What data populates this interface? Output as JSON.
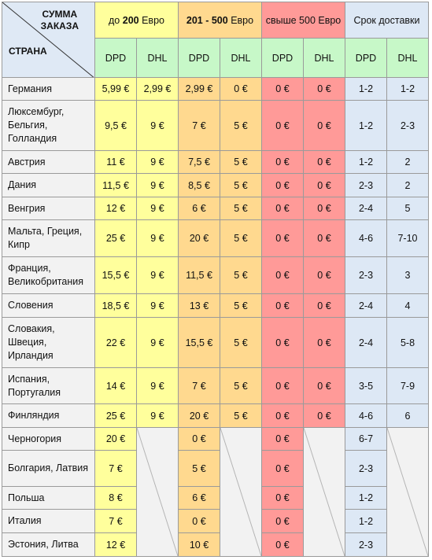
{
  "header": {
    "corner_top_line1": "СУММА",
    "corner_top_line2": "ЗАКАЗА",
    "corner_bottom": "СТРАНА",
    "group1_prefix": "до",
    "group1_amount": "200",
    "group1_suffix": "Евро",
    "group2_amount": "201 - 500",
    "group2_suffix": "Евро",
    "group3": "свыше 500 Евро",
    "group4": "Срок доставки",
    "carrier_dpd": "DPD",
    "carrier_dhl": "DHL"
  },
  "colors": {
    "tier1": "#ffff9c",
    "tier2": "#ffd98f",
    "tier3": "#ff9a98",
    "delivery": "#dde8f5",
    "carrier_header": "#c7f8c8",
    "country_col": "#f2f2f2"
  },
  "rows": [
    {
      "country": "Германия",
      "v": [
        "5,99 €",
        "2,99 €",
        "2,99 €",
        "0 €",
        "0 €",
        "0 €",
        "1-2",
        "1-2"
      ]
    },
    {
      "country": "Люксембург, Бельгия, Голландия",
      "v": [
        "9,5 €",
        "9 €",
        "7 €",
        "5 €",
        "0 €",
        "0 €",
        "1-2",
        "2-3"
      ]
    },
    {
      "country": "Австрия",
      "v": [
        "11 €",
        "9 €",
        "7,5 €",
        "5 €",
        "0 €",
        "0 €",
        "1-2",
        "2"
      ]
    },
    {
      "country": "Дания",
      "v": [
        "11,5 €",
        "9 €",
        "8,5 €",
        "5 €",
        "0 €",
        "0 €",
        "2-3",
        "2"
      ]
    },
    {
      "country": "Венгрия",
      "v": [
        "12 €",
        "9 €",
        "6 €",
        "5 €",
        "0 €",
        "0 €",
        "2-4",
        "5"
      ]
    },
    {
      "country": "Мальта, Греция, Кипр",
      "v": [
        "25 €",
        "9 €",
        "20 €",
        "5 €",
        "0 €",
        "0 €",
        "4-6",
        "7-10"
      ]
    },
    {
      "country": "Франция, Великобритания",
      "v": [
        "15,5 €",
        "9 €",
        "11,5 €",
        "5 €",
        "0 €",
        "0 €",
        "2-3",
        "3"
      ]
    },
    {
      "country": "Словения",
      "v": [
        "18,5 €",
        "9 €",
        "13 €",
        "5 €",
        "0 €",
        "0 €",
        "2-4",
        "4"
      ]
    },
    {
      "country": "Словакия, Швеция, Ирландия",
      "v": [
        "22 €",
        "9 €",
        "15,5 €",
        "5 €",
        "0 €",
        "0 €",
        "2-4",
        "5-8"
      ]
    },
    {
      "country": "Испания, Португалия",
      "v": [
        "14 €",
        "9 €",
        "7 €",
        "5 €",
        "0 €",
        "0 €",
        "3-5",
        "7-9"
      ]
    },
    {
      "country": "Финляндия",
      "v": [
        "25 €",
        "9 €",
        "20 €",
        "5 €",
        "0 €",
        "0 €",
        "4-6",
        "6"
      ]
    },
    {
      "country": "Черногория",
      "v": [
        "20 €",
        null,
        "0 €",
        null,
        "0 €",
        null,
        "6-7",
        null
      ]
    },
    {
      "country": "Болгария, Латвия",
      "v": [
        "7 €",
        null,
        "5 €",
        null,
        "0 €",
        null,
        "2-3",
        null
      ]
    },
    {
      "country": "Польша",
      "v": [
        "8 €",
        null,
        "6 €",
        null,
        "0 €",
        null,
        "1-2",
        null
      ]
    },
    {
      "country": "Италия",
      "v": [
        "7 €",
        null,
        "0 €",
        null,
        "0 €",
        null,
        "1-2",
        null
      ]
    },
    {
      "country": "Эстония, Литва",
      "v": [
        "12 €",
        null,
        "10 €",
        null,
        "0 €",
        null,
        "2-3",
        null
      ]
    }
  ]
}
